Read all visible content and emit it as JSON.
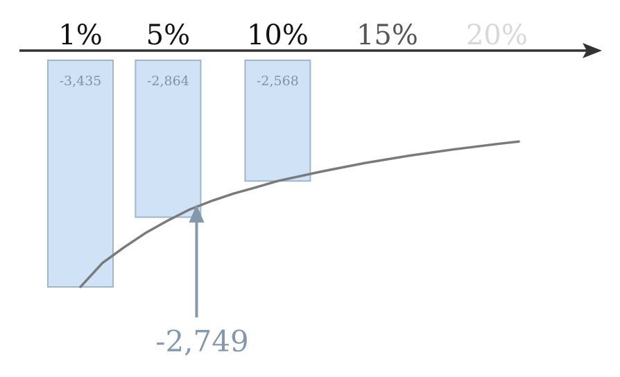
{
  "chart_data": {
    "type": "bar",
    "x_ticks": [
      {
        "value": 1,
        "label": "1%",
        "color": "#111111"
      },
      {
        "value": 5,
        "label": "5%",
        "color": "#111111"
      },
      {
        "value": 10,
        "label": "10%",
        "color": "#111111"
      },
      {
        "value": 15,
        "label": "15%",
        "color": "#555555"
      },
      {
        "value": 20,
        "label": "20%",
        "color": "#d8d8d8"
      }
    ],
    "bars": [
      {
        "x": 1,
        "value": -3435,
        "label": "-3,435"
      },
      {
        "x": 5,
        "value": -2864,
        "label": "-2,864"
      },
      {
        "x": 10,
        "value": -2568,
        "label": "-2,568"
      }
    ],
    "curve": [
      {
        "x": 1,
        "y": -3435
      },
      {
        "x": 2,
        "y": -3240
      },
      {
        "x": 3,
        "y": -3110
      },
      {
        "x": 4,
        "y": -2990
      },
      {
        "x": 5,
        "y": -2890
      },
      {
        "x": 6,
        "y": -2800
      },
      {
        "x": 7,
        "y": -2730
      },
      {
        "x": 8,
        "y": -2670
      },
      {
        "x": 9,
        "y": -2620
      },
      {
        "x": 10,
        "y": -2568
      },
      {
        "x": 12,
        "y": -2490
      },
      {
        "x": 14,
        "y": -2420
      },
      {
        "x": 16,
        "y": -2360
      },
      {
        "x": 18,
        "y": -2310
      },
      {
        "x": 20,
        "y": -2265
      },
      {
        "x": 21,
        "y": -2245
      }
    ],
    "annotation": {
      "x": 6.3,
      "value": -2749,
      "label": "-2,749"
    },
    "ylim": [
      -4200,
      -1500
    ],
    "colors": {
      "bar_fill": "#cfe2f6",
      "bar_stroke": "#9fb6cc",
      "axis": "#333333",
      "curve": "#7a7a7a",
      "annotation": "#8598ab"
    }
  }
}
